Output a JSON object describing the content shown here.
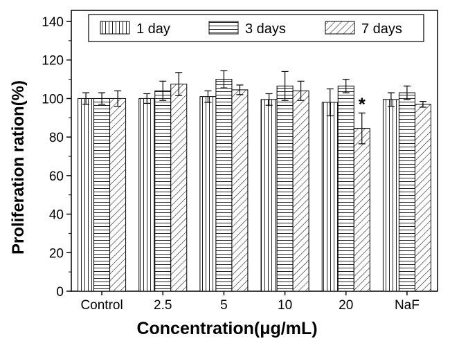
{
  "chart_data": {
    "type": "bar",
    "title": "",
    "xlabel": "Concentration(μg/mL)",
    "ylabel": "Proliferation ration(%)",
    "ylim": [
      0,
      145
    ],
    "yticks": [
      0,
      20,
      40,
      60,
      80,
      100,
      120,
      140
    ],
    "categories": [
      "Control",
      "2.5",
      "5",
      "10",
      "20",
      "NaF"
    ],
    "series": [
      {
        "name": "1 day",
        "pattern": "vertical",
        "values": [
          100,
          100,
          101,
          99.5,
          98,
          99.5
        ],
        "errors": [
          3,
          2.5,
          3,
          3,
          7,
          3.5
        ]
      },
      {
        "name": "3 days",
        "pattern": "horizontal",
        "values": [
          100,
          104,
          110,
          106.5,
          106.5,
          103
        ],
        "errors": [
          3,
          5,
          4.5,
          7.5,
          3.5,
          3.5
        ]
      },
      {
        "name": "7 days",
        "pattern": "diagonal",
        "values": [
          100,
          107.5,
          104.5,
          104,
          84.5,
          97
        ],
        "errors": [
          4,
          6,
          2.5,
          5,
          8,
          1.5
        ]
      }
    ],
    "annotations": [
      {
        "category": "20",
        "series": "7 days",
        "text": "*"
      }
    ],
    "legend_position": "top",
    "grid": false
  }
}
